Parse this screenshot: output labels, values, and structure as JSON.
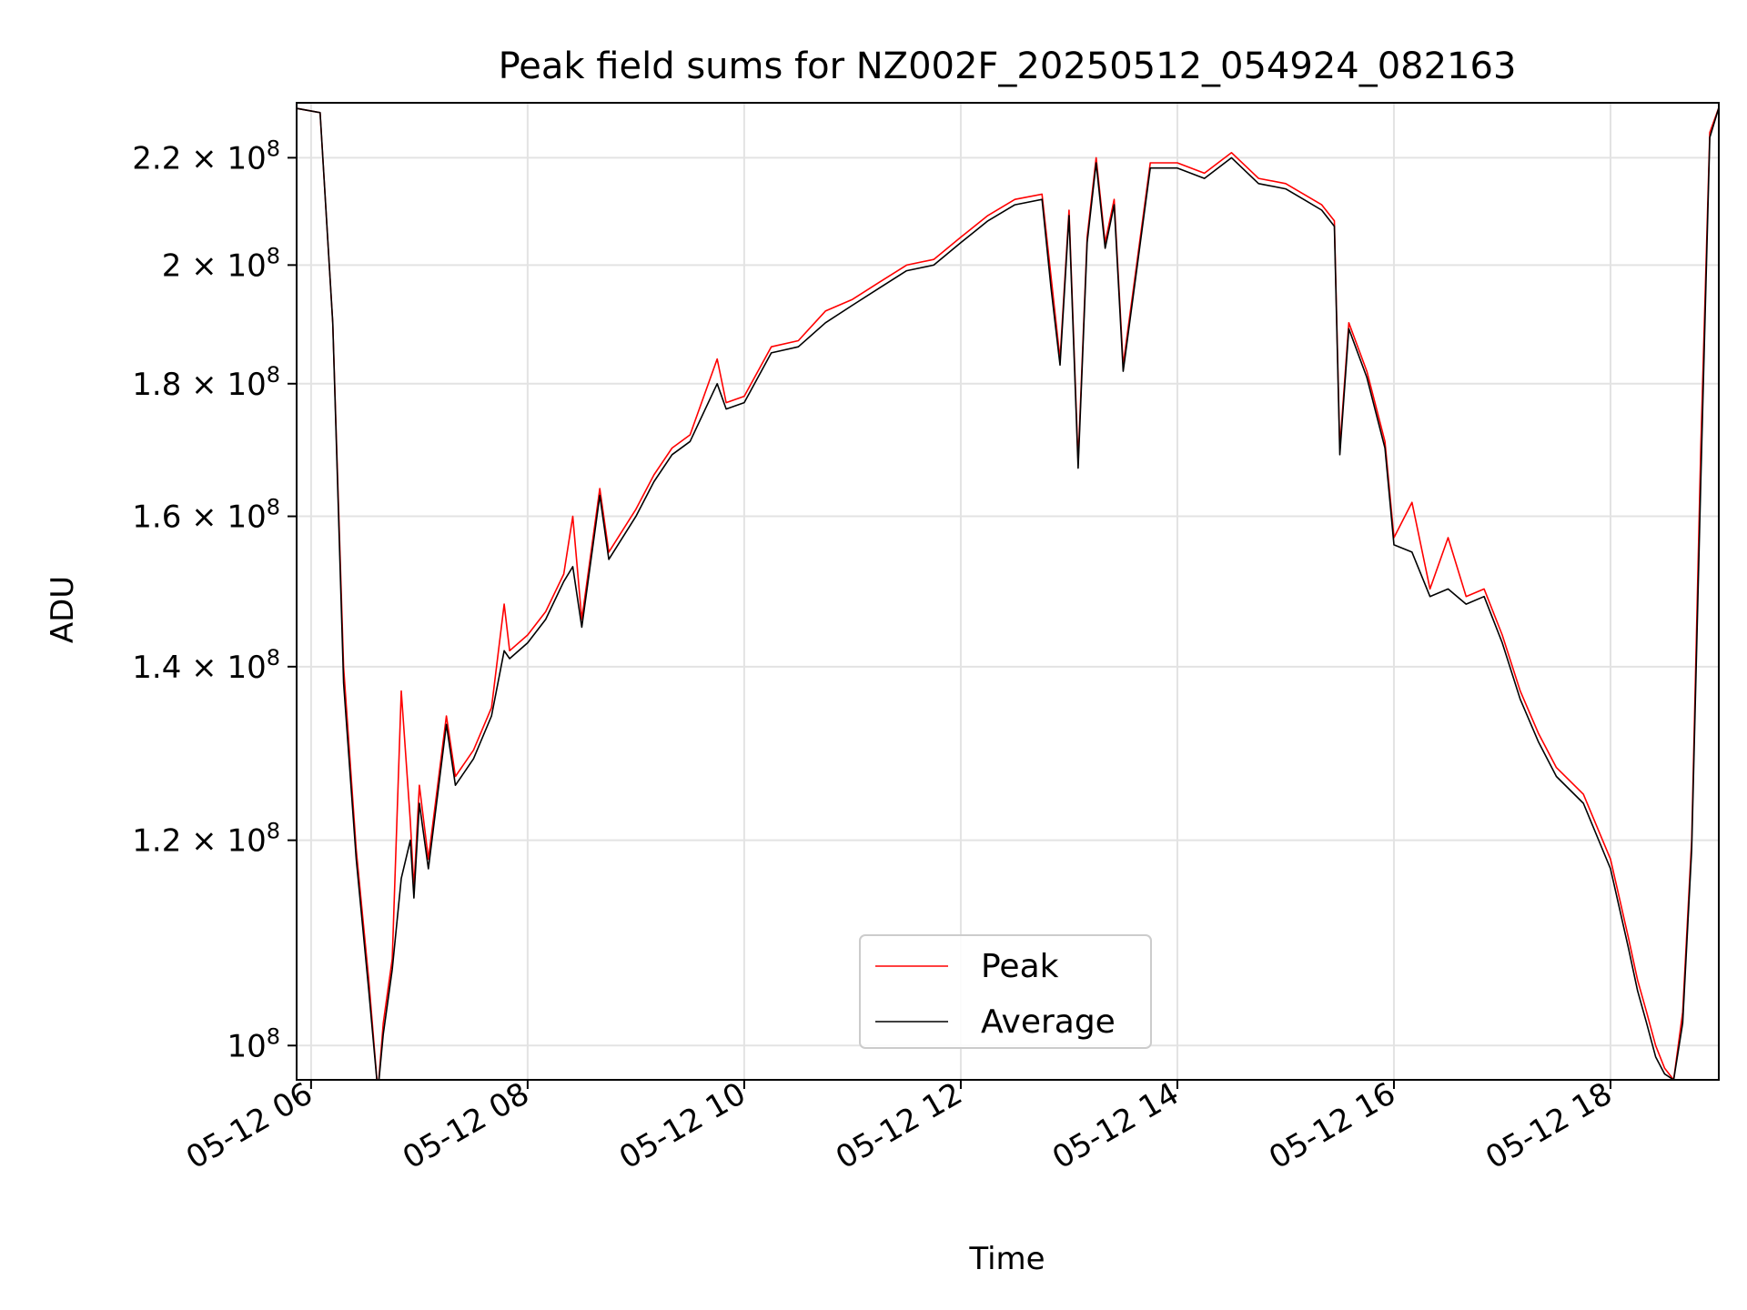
{
  "chart_data": {
    "type": "line",
    "title": "Peak field sums for NZ002F_20250512_054924_082163",
    "xlabel": "Time",
    "ylabel": "ADU",
    "y_scale": "log",
    "xlim": [
      "2025-05-12 05:52",
      "2025-05-12 19:00"
    ],
    "ylim": [
      97000000,
      231000000
    ],
    "x_ticks": [
      "05-12 06",
      "05-12 08",
      "05-12 10",
      "05-12 12",
      "05-12 14",
      "05-12 16",
      "05-12 18"
    ],
    "y_ticks": [
      {
        "value": 100000000,
        "mantissa": "",
        "base": "10",
        "exp": "8"
      },
      {
        "value": 120000000,
        "mantissa": "1.2 × ",
        "base": "10",
        "exp": "8"
      },
      {
        "value": 140000000,
        "mantissa": "1.4 × ",
        "base": "10",
        "exp": "8"
      },
      {
        "value": 160000000,
        "mantissa": "1.6 × ",
        "base": "10",
        "exp": "8"
      },
      {
        "value": 180000000,
        "mantissa": "1.8 × ",
        "base": "10",
        "exp": "8"
      },
      {
        "value": 200000000,
        "mantissa": "2 × ",
        "base": "10",
        "exp": "8"
      },
      {
        "value": 220000000,
        "mantissa": "2.2 × ",
        "base": "10",
        "exp": "8"
      }
    ],
    "grid": true,
    "legend_position": "bottom-center",
    "series": [
      {
        "name": "Peak",
        "color": "#ff0000",
        "x": [
          "2025-05-12 05:50",
          "2025-05-12 06:05",
          "2025-05-12 06:12",
          "2025-05-12 06:18",
          "2025-05-12 06:25",
          "2025-05-12 06:32",
          "2025-05-12 06:37",
          "2025-05-12 06:40",
          "2025-05-12 06:45",
          "2025-05-12 06:50",
          "2025-05-12 06:55",
          "2025-05-12 06:57",
          "2025-05-12 07:00",
          "2025-05-12 07:05",
          "2025-05-12 07:15",
          "2025-05-12 07:20",
          "2025-05-12 07:30",
          "2025-05-12 07:40",
          "2025-05-12 07:47",
          "2025-05-12 07:50",
          "2025-05-12 08:00",
          "2025-05-12 08:10",
          "2025-05-12 08:20",
          "2025-05-12 08:25",
          "2025-05-12 08:30",
          "2025-05-12 08:40",
          "2025-05-12 08:45",
          "2025-05-12 09:00",
          "2025-05-12 09:10",
          "2025-05-12 09:20",
          "2025-05-12 09:30",
          "2025-05-12 09:45",
          "2025-05-12 09:50",
          "2025-05-12 10:00",
          "2025-05-12 10:15",
          "2025-05-12 10:30",
          "2025-05-12 10:45",
          "2025-05-12 11:00",
          "2025-05-12 11:15",
          "2025-05-12 11:30",
          "2025-05-12 11:45",
          "2025-05-12 12:00",
          "2025-05-12 12:15",
          "2025-05-12 12:30",
          "2025-05-12 12:45",
          "2025-05-12 12:50",
          "2025-05-12 12:55",
          "2025-05-12 13:00",
          "2025-05-12 13:05",
          "2025-05-12 13:10",
          "2025-05-12 13:15",
          "2025-05-12 13:20",
          "2025-05-12 13:25",
          "2025-05-12 13:30",
          "2025-05-12 13:45",
          "2025-05-12 14:00",
          "2025-05-12 14:15",
          "2025-05-12 14:30",
          "2025-05-12 14:45",
          "2025-05-12 15:00",
          "2025-05-12 15:10",
          "2025-05-12 15:20",
          "2025-05-12 15:27",
          "2025-05-12 15:30",
          "2025-05-12 15:35",
          "2025-05-12 15:45",
          "2025-05-12 15:55",
          "2025-05-12 16:00",
          "2025-05-12 16:10",
          "2025-05-12 16:20",
          "2025-05-12 16:30",
          "2025-05-12 16:40",
          "2025-05-12 16:50",
          "2025-05-12 17:00",
          "2025-05-12 17:10",
          "2025-05-12 17:20",
          "2025-05-12 17:30",
          "2025-05-12 17:45",
          "2025-05-12 18:00",
          "2025-05-12 18:10",
          "2025-05-12 18:15",
          "2025-05-12 18:20",
          "2025-05-12 18:25",
          "2025-05-12 18:30",
          "2025-05-12 18:35",
          "2025-05-12 18:40",
          "2025-05-12 18:45",
          "2025-05-12 18:50",
          "2025-05-12 18:55",
          "2025-05-12 19:00"
        ],
        "y": [
          230000000,
          229000000,
          190000000,
          140000000,
          119000000,
          106000000,
          96000000,
          102000000,
          108000000,
          137000000,
          122000000,
          115000000,
          126000000,
          118000000,
          134000000,
          127000000,
          130000000,
          135000000,
          148000000,
          142000000,
          144000000,
          147000000,
          152000000,
          160000000,
          146000000,
          164000000,
          155000000,
          161000000,
          166000000,
          170000000,
          172000000,
          184000000,
          177000000,
          178000000,
          186000000,
          187000000,
          192000000,
          194000000,
          197000000,
          200000000,
          201000000,
          205000000,
          209000000,
          212000000,
          213000000,
          198000000,
          184000000,
          210000000,
          168000000,
          205000000,
          220000000,
          204000000,
          212000000,
          183000000,
          219000000,
          219000000,
          217000000,
          221000000,
          216000000,
          215000000,
          213000000,
          211000000,
          208000000,
          170000000,
          190000000,
          182000000,
          171000000,
          157000000,
          162000000,
          150000000,
          157000000,
          149000000,
          150000000,
          144000000,
          137000000,
          132000000,
          128000000,
          125000000,
          118000000,
          110000000,
          106000000,
          103000000,
          100000000,
          98000000,
          97000000,
          103000000,
          120000000,
          170000000,
          225000000,
          230000000
        ]
      },
      {
        "name": "Average",
        "color": "#000000",
        "x": [
          "2025-05-12 05:50",
          "2025-05-12 06:05",
          "2025-05-12 06:12",
          "2025-05-12 06:18",
          "2025-05-12 06:25",
          "2025-05-12 06:32",
          "2025-05-12 06:37",
          "2025-05-12 06:40",
          "2025-05-12 06:45",
          "2025-05-12 06:50",
          "2025-05-12 06:55",
          "2025-05-12 06:57",
          "2025-05-12 07:00",
          "2025-05-12 07:05",
          "2025-05-12 07:15",
          "2025-05-12 07:20",
          "2025-05-12 07:30",
          "2025-05-12 07:40",
          "2025-05-12 07:47",
          "2025-05-12 07:50",
          "2025-05-12 08:00",
          "2025-05-12 08:10",
          "2025-05-12 08:20",
          "2025-05-12 08:25",
          "2025-05-12 08:30",
          "2025-05-12 08:40",
          "2025-05-12 08:45",
          "2025-05-12 09:00",
          "2025-05-12 09:10",
          "2025-05-12 09:20",
          "2025-05-12 09:30",
          "2025-05-12 09:45",
          "2025-05-12 09:50",
          "2025-05-12 10:00",
          "2025-05-12 10:15",
          "2025-05-12 10:30",
          "2025-05-12 10:45",
          "2025-05-12 11:00",
          "2025-05-12 11:15",
          "2025-05-12 11:30",
          "2025-05-12 11:45",
          "2025-05-12 12:00",
          "2025-05-12 12:15",
          "2025-05-12 12:30",
          "2025-05-12 12:45",
          "2025-05-12 12:50",
          "2025-05-12 12:55",
          "2025-05-12 13:00",
          "2025-05-12 13:05",
          "2025-05-12 13:10",
          "2025-05-12 13:15",
          "2025-05-12 13:20",
          "2025-05-12 13:25",
          "2025-05-12 13:30",
          "2025-05-12 13:45",
          "2025-05-12 14:00",
          "2025-05-12 14:15",
          "2025-05-12 14:30",
          "2025-05-12 14:45",
          "2025-05-12 15:00",
          "2025-05-12 15:10",
          "2025-05-12 15:20",
          "2025-05-12 15:27",
          "2025-05-12 15:30",
          "2025-05-12 15:35",
          "2025-05-12 15:45",
          "2025-05-12 15:55",
          "2025-05-12 16:00",
          "2025-05-12 16:10",
          "2025-05-12 16:20",
          "2025-05-12 16:30",
          "2025-05-12 16:40",
          "2025-05-12 16:50",
          "2025-05-12 17:00",
          "2025-05-12 17:10",
          "2025-05-12 17:20",
          "2025-05-12 17:30",
          "2025-05-12 17:45",
          "2025-05-12 18:00",
          "2025-05-12 18:10",
          "2025-05-12 18:15",
          "2025-05-12 18:20",
          "2025-05-12 18:25",
          "2025-05-12 18:30",
          "2025-05-12 18:35",
          "2025-05-12 18:40",
          "2025-05-12 18:45",
          "2025-05-12 18:50",
          "2025-05-12 18:55",
          "2025-05-12 19:00"
        ],
        "y": [
          230000000,
          229000000,
          190000000,
          138000000,
          118000000,
          105000000,
          96000000,
          101000000,
          107000000,
          116000000,
          120000000,
          114000000,
          124000000,
          117000000,
          133000000,
          126000000,
          129000000,
          134000000,
          142000000,
          141000000,
          143000000,
          146000000,
          151000000,
          153000000,
          145000000,
          163000000,
          154000000,
          160000000,
          165000000,
          169000000,
          171000000,
          180000000,
          176000000,
          177000000,
          185000000,
          186000000,
          190000000,
          193000000,
          196000000,
          199000000,
          200000000,
          204000000,
          208000000,
          211000000,
          212000000,
          196000000,
          183000000,
          209000000,
          167000000,
          204000000,
          219000000,
          203000000,
          211000000,
          182000000,
          218000000,
          218000000,
          216000000,
          220000000,
          215000000,
          214000000,
          212000000,
          210000000,
          207000000,
          169000000,
          189000000,
          181000000,
          170000000,
          156000000,
          155000000,
          149000000,
          150000000,
          148000000,
          149000000,
          143000000,
          136000000,
          131000000,
          127000000,
          124000000,
          117000000,
          109000000,
          105000000,
          102000000,
          99000000,
          97500000,
          97000000,
          102000000,
          119000000,
          165000000,
          224000000,
          230000000
        ]
      }
    ]
  }
}
